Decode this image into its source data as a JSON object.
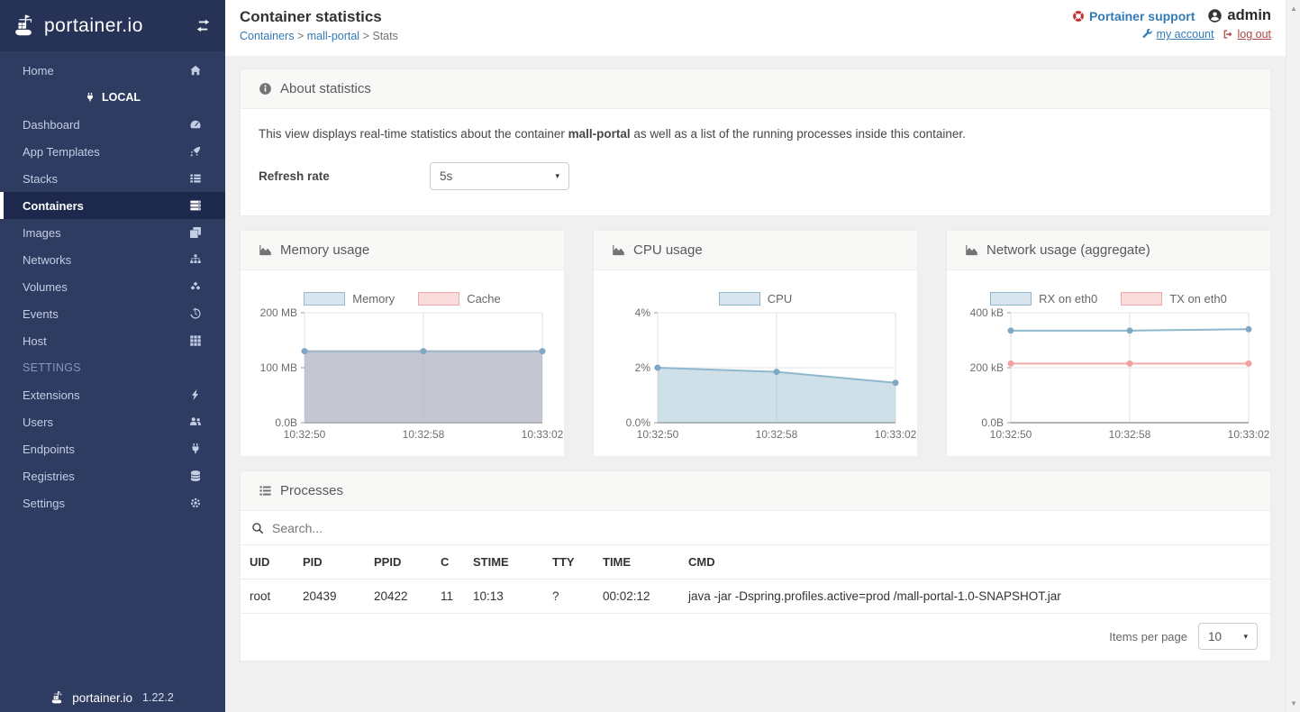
{
  "colors": {
    "accent": "#337ab7",
    "danger": "#a94442",
    "sidebar_bg": "#2e3c62",
    "page_bg": "#f0f0f0",
    "series_blue": "#8fb7cd",
    "series_red": "#f2a9a9"
  },
  "sidebar": {
    "logo_text": "portainer.io",
    "items": [
      {
        "label": "Home",
        "icon": "home-icon"
      },
      {
        "label": "LOCAL",
        "icon": "plug-icon"
      },
      {
        "label": "Dashboard",
        "icon": "dashboard-icon"
      },
      {
        "label": "App Templates",
        "icon": "rocket-icon"
      },
      {
        "label": "Stacks",
        "icon": "list-icon"
      },
      {
        "label": "Containers",
        "icon": "server-icon",
        "active": true
      },
      {
        "label": "Images",
        "icon": "copy-icon"
      },
      {
        "label": "Networks",
        "icon": "sitemap-icon"
      },
      {
        "label": "Volumes",
        "icon": "cubes-icon"
      },
      {
        "label": "Events",
        "icon": "history-icon"
      },
      {
        "label": "Host",
        "icon": "grid-icon"
      },
      {
        "label": "SETTINGS"
      },
      {
        "label": "Extensions",
        "icon": "bolt-icon"
      },
      {
        "label": "Users",
        "icon": "users-icon"
      },
      {
        "label": "Endpoints",
        "icon": "plug-icon"
      },
      {
        "label": "Registries",
        "icon": "database-icon"
      },
      {
        "label": "Settings",
        "icon": "gears-icon"
      }
    ],
    "footer_logo_text": "portainer.io",
    "footer_version": "1.22.2"
  },
  "header": {
    "title": "Container statistics",
    "breadcrumb": {
      "containers": "Containers",
      "container_name": "mall-portal",
      "current": "Stats",
      "separator": ">"
    },
    "support_label": "Portainer support",
    "username": "admin",
    "my_account_label": "my account",
    "logout_label": "log out"
  },
  "about": {
    "title": "About statistics",
    "description_prefix": "This view displays real-time statistics about the container ",
    "container_name": "mall-portal",
    "description_suffix": " as well as a list of the running processes inside this container.",
    "refresh_rate_label": "Refresh rate",
    "refresh_rate_value": "5s"
  },
  "chart_data": [
    {
      "type": "line",
      "title": "Memory usage",
      "x": [
        "10:32:50",
        "10:32:58",
        "10:33:02"
      ],
      "ymax": 200,
      "yticks": [
        {
          "v": 0,
          "label": "0.0B"
        },
        {
          "v": 100,
          "label": "100 MB"
        },
        {
          "v": 200,
          "label": "200 MB"
        }
      ],
      "grid": true,
      "legend_position": "top",
      "series": [
        {
          "name": "Memory",
          "values": [
            130,
            130,
            130
          ],
          "color": "#9db8ca",
          "fill": "rgba(151,187,205,0.55)",
          "legend_fill": "#d9e5ee",
          "point": "#7fa8c5"
        },
        {
          "name": "Cache",
          "values": [
            130,
            130,
            130
          ],
          "color": "#f2a9a9",
          "fill": "rgba(243,164,164,0.45)",
          "legend_fill": "#fbdcdc",
          "point": "#f0a1a1"
        }
      ]
    },
    {
      "type": "line",
      "title": "CPU usage",
      "x": [
        "10:32:50",
        "10:32:58",
        "10:33:02"
      ],
      "ymax": 4,
      "yticks": [
        {
          "v": 0,
          "label": "0.0%"
        },
        {
          "v": 2,
          "label": "2%"
        },
        {
          "v": 4,
          "label": "4%"
        }
      ],
      "grid": true,
      "legend_position": "top",
      "series": [
        {
          "name": "CPU",
          "values": [
            2.0,
            1.85,
            1.45
          ],
          "color": "#8fb7cd",
          "fill": "rgba(151,187,205,0.45)",
          "legend_fill": "#d9e5ee",
          "point": "#7fa8c5"
        }
      ]
    },
    {
      "type": "line",
      "title": "Network usage (aggregate)",
      "x": [
        "10:32:50",
        "10:32:58",
        "10:33:02"
      ],
      "ymax": 400,
      "yticks": [
        {
          "v": 0,
          "label": "0.0B"
        },
        {
          "v": 200,
          "label": "200 kB"
        },
        {
          "v": 400,
          "label": "400 kB"
        }
      ],
      "grid": true,
      "legend_position": "top",
      "series": [
        {
          "name": "RX on eth0",
          "values": [
            335,
            335,
            340
          ],
          "color": "#8fb7cd",
          "legend_fill": "#d9e5ee",
          "point": "#7fa8c5"
        },
        {
          "name": "TX on eth0",
          "values": [
            215,
            215,
            215
          ],
          "color": "#f2a9a9",
          "legend_fill": "#fbdcdc",
          "point": "#f0a1a1"
        }
      ]
    }
  ],
  "processes": {
    "title": "Processes",
    "search_placeholder": "Search...",
    "columns": [
      "UID",
      "PID",
      "PPID",
      "C",
      "STIME",
      "TTY",
      "TIME",
      "CMD"
    ],
    "rows": [
      [
        "root",
        "20439",
        "20422",
        "11",
        "10:13",
        "?",
        "00:02:12",
        "java -jar -Dspring.profiles.active=prod /mall-portal-1.0-SNAPSHOT.jar"
      ]
    ],
    "items_per_page_label": "Items per page",
    "items_per_page_value": "10"
  }
}
